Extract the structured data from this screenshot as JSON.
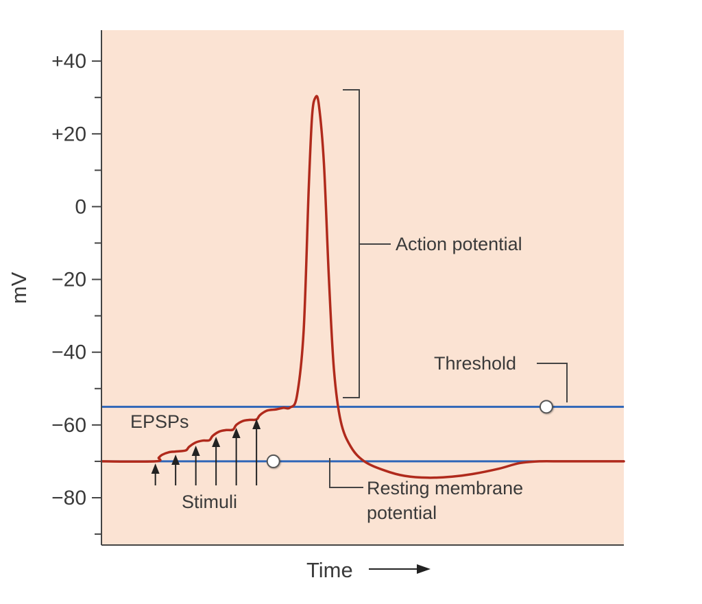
{
  "chart_data": {
    "type": "line",
    "ylabel": "mV",
    "xlabel": "Time",
    "ylim": [
      -93,
      48.5
    ],
    "yticks": [
      {
        "value": 40,
        "label": "+40"
      },
      {
        "value": 20,
        "label": "+20"
      },
      {
        "value": 0,
        "label": "0"
      },
      {
        "value": -20,
        "label": "−20"
      },
      {
        "value": -40,
        "label": "−40"
      },
      {
        "value": -60,
        "label": "−60"
      },
      {
        "value": -80,
        "label": "−80"
      }
    ],
    "minor_tick_step": 10,
    "grid": false,
    "colors": {
      "background": "#fbe3d3",
      "trace": "#b02a1c",
      "reference_lines": "#2f66b8",
      "axis": "#444444",
      "text": "#3a3a3a"
    },
    "series": [
      {
        "values_description": "",
        "x": [
          0,
          16,
          17,
          18,
          20,
          22,
          25,
          26,
          28,
          30,
          32,
          33,
          35,
          37,
          39,
          40,
          42,
          44,
          46,
          47,
          49,
          51,
          52,
          54,
          56,
          58,
          60,
          61.5,
          62.5,
          63.5,
          64.5,
          66,
          67.5,
          69,
          71,
          74,
          78,
          84,
          90,
          97,
          104,
          110,
          118,
          124,
          130,
          136,
          142,
          148,
          155
        ],
        "y": [
          -70,
          -70,
          -69,
          -68.2,
          -67.5,
          -67.3,
          -67,
          -66,
          -64.8,
          -64.3,
          -64.2,
          -63,
          -61.8,
          -61.4,
          -61.3,
          -60,
          -58.9,
          -58.6,
          -58.5,
          -57.3,
          -56.1,
          -55.8,
          -55.7,
          -55.3,
          -55.2,
          -52,
          -34,
          5,
          25,
          30,
          28,
          12,
          -20,
          -45,
          -59,
          -66,
          -70,
          -72.5,
          -74,
          -74.5,
          -74.2,
          -73.5,
          -72,
          -70.5,
          -70,
          -70,
          -70,
          -70,
          -70
        ]
      }
    ],
    "xlim": [
      0,
      155
    ],
    "hlines": [
      {
        "name": "Threshold",
        "value": -55
      },
      {
        "name": "Resting membrane potential",
        "value": -70
      }
    ],
    "stimuli_x": [
      16,
      22,
      28,
      34,
      40,
      46
    ],
    "markers": [
      {
        "ref": "Threshold",
        "x": 132
      },
      {
        "ref": "Resting membrane potential",
        "x": 51
      }
    ],
    "annotations": {
      "action_potential": "Action potential",
      "threshold": "Threshold",
      "resting_line1": "Resting membrane",
      "resting_line2": "potential",
      "epsps": "EPSPs",
      "stimuli": "Stimuli"
    }
  }
}
